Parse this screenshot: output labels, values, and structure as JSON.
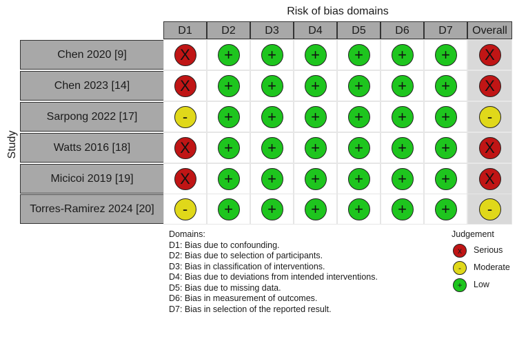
{
  "header": {
    "title": "Risk of bias domains"
  },
  "y_axis_label": "Study",
  "columns": [
    "D1",
    "D2",
    "D3",
    "D4",
    "D5",
    "D6",
    "D7",
    "Overall"
  ],
  "studies": [
    {
      "name": "Chen 2020 [9]",
      "judgements": [
        "Serious",
        "Low",
        "Low",
        "Low",
        "Low",
        "Low",
        "Low",
        "Serious"
      ]
    },
    {
      "name": "Chen 2023 [14]",
      "judgements": [
        "Serious",
        "Low",
        "Low",
        "Low",
        "Low",
        "Low",
        "Low",
        "Serious"
      ]
    },
    {
      "name": "Sarpong 2022 [17]",
      "judgements": [
        "Moderate",
        "Low",
        "Low",
        "Low",
        "Low",
        "Low",
        "Low",
        "Moderate"
      ]
    },
    {
      "name": "Watts 2016 [18]",
      "judgements": [
        "Serious",
        "Low",
        "Low",
        "Low",
        "Low",
        "Low",
        "Low",
        "Serious"
      ]
    },
    {
      "name": "Micicoi 2019 [19]",
      "judgements": [
        "Serious",
        "Low",
        "Low",
        "Low",
        "Low",
        "Low",
        "Low",
        "Serious"
      ]
    },
    {
      "name": "Torres-Ramirez 2024 [20]",
      "judgements": [
        "Moderate",
        "Low",
        "Low",
        "Low",
        "Low",
        "Low",
        "Low",
        "Moderate"
      ]
    }
  ],
  "symbols": {
    "Serious": "X",
    "Moderate": "-",
    "Low": "+"
  },
  "colors": {
    "Serious": "#c01515",
    "Moderate": "#e0d81a",
    "Low": "#1ec51e",
    "header_bg": "#a8a8a8",
    "overall_bg": "#d9d9d9"
  },
  "domains": {
    "heading": "Domains:",
    "items": [
      "D1: Bias due to confounding.",
      "D2: Bias due to selection of participants.",
      "D3: Bias in classification of interventions.",
      "D4: Bias due to deviations from intended interventions.",
      "D5: Bias due to missing data.",
      "D6: Bias in measurement of outcomes.",
      "D7: Bias in selection of the reported result."
    ]
  },
  "legend": {
    "title": "Judgement",
    "items": [
      {
        "label": "Serious",
        "symbol": "x",
        "level": "Serious"
      },
      {
        "label": "Moderate",
        "symbol": "-",
        "level": "Moderate"
      },
      {
        "label": "Low",
        "symbol": "+",
        "level": "Low"
      }
    ]
  }
}
